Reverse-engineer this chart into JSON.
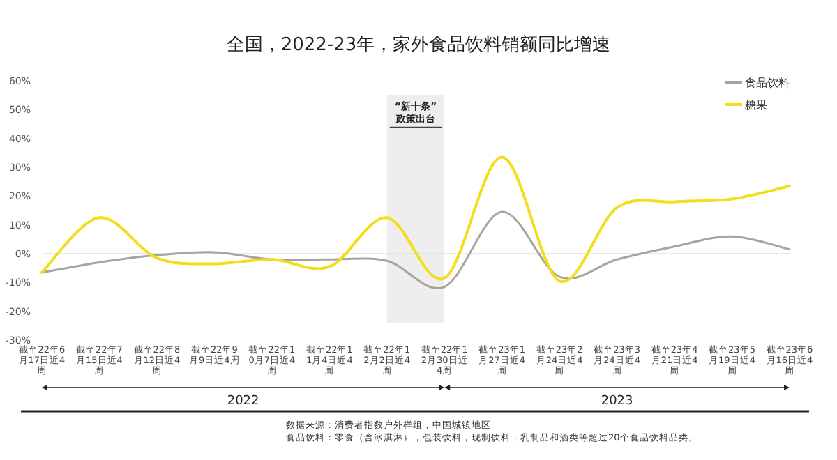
{
  "chart_data": {
    "type": "line",
    "title": "全国，2022-23年，家外食品饮料销额同比增速",
    "categories": [
      "截至22年6月17日近4周",
      "截至22年7月15日近4周",
      "截至22年8月12日近4周",
      "截至22年9月9日近4周",
      "截至22年10月7日近4周",
      "截至22年11月4日近4周",
      "截至22年12月2日近4周",
      "截至22年12月30日近4周",
      "截至23年1月27日近4周",
      "截至23年2月24日近4周",
      "截至23年3月24日近4周",
      "截至23年4月21日近4周",
      "截至23年5月19日近4周",
      "截至23年6月16日近4周"
    ],
    "series": [
      {
        "name": "食品饮料",
        "color": "#a8a49c",
        "values": [
          -6.5,
          -3,
          -0.5,
          0.5,
          -2,
          -2,
          -2.5,
          -11.5,
          14.5,
          -8,
          -2,
          2.5,
          6,
          1.5
        ]
      },
      {
        "name": "糖果",
        "color": "#f2de1c",
        "values": [
          -6.5,
          12.5,
          -1.5,
          -3.5,
          -2,
          -4.5,
          12.5,
          -8.5,
          33.5,
          -9.5,
          16,
          18,
          19,
          23.5
        ]
      }
    ],
    "ylim": [
      -30,
      60
    ],
    "yticks": [
      {
        "value": -30,
        "label": "-30%"
      },
      {
        "value": -20,
        "label": "-20%"
      },
      {
        "value": -10,
        "label": "-10%"
      },
      {
        "value": 0,
        "label": "0%"
      },
      {
        "value": 10,
        "label": "10%"
      },
      {
        "value": 20,
        "label": "20%"
      },
      {
        "value": 30,
        "label": "30%"
      },
      {
        "value": 40,
        "label": "40%"
      },
      {
        "value": 50,
        "label": "50%"
      },
      {
        "value": 60,
        "label": "60%"
      }
    ],
    "ref_lines": [
      {
        "axis": "y",
        "value": 0,
        "color": "#e0e0e0"
      }
    ],
    "bands": [
      {
        "axis": "x",
        "from": "截至22年12月2日近4周",
        "to": "截至22年12月30日近4周",
        "label": "“新十条”\n政策出台",
        "color": "#eeeeee"
      }
    ],
    "legend": "top right",
    "grid": false,
    "marker": "none",
    "line_style": "solid",
    "annotations": [
      "2022",
      "2023",
      "数据来源：消费者指数户外样组，中国城镇地区",
      "食品饮料：零食（含冰淇淋），包装饮料，现制饮料，乳制品和酒类等超过20个食品饮料品类。"
    ]
  }
}
